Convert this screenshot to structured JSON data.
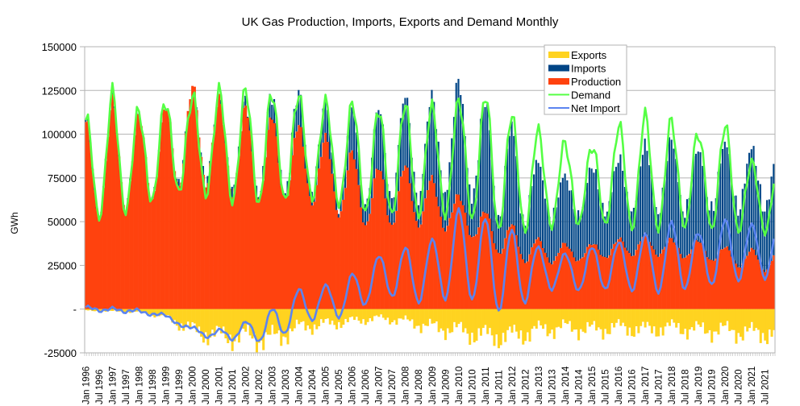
{
  "chart_data": {
    "type": "bar",
    "title": "UK Gas Production, Imports, Exports and Demand Monthly",
    "xlabel": "",
    "ylabel": "GWh",
    "ylim": [
      -25000,
      150000
    ],
    "yticks": [
      {
        "value": 150000,
        "label": "150000"
      },
      {
        "value": 125000,
        "label": "125000"
      },
      {
        "value": 100000,
        "label": "100000"
      },
      {
        "value": 75000,
        "label": "75000"
      },
      {
        "value": 50000,
        "label": "50000"
      },
      {
        "value": 25000,
        "label": "25000"
      },
      {
        "value": 0,
        "label": "-"
      },
      {
        "value": -25000,
        "label": "-25000"
      }
    ],
    "grid": true,
    "legend_position": "top-right",
    "x_start": "Jan 1996",
    "x_end": "Nov 2021",
    "x_tick_labels": [
      "Jan 1996",
      "Jul 1996",
      "Jan 1997",
      "Jul 1997",
      "Jan 1998",
      "Jul 1998",
      "Jan 1999",
      "Jul 1999",
      "Jan 2000",
      "Jul 2000",
      "Jan 2001",
      "Jul 2001",
      "Jan 2002",
      "Jul 2002",
      "Jan 2003",
      "Jul 2003",
      "Jan 2004",
      "Jul 2004",
      "Jan 2005",
      "Jul 2005",
      "Jan 2006",
      "Jul 2006",
      "Jan 2007",
      "Jul 2007",
      "Jan 2008",
      "Jul 2008",
      "Jan 2009",
      "Jul 2009",
      "Jan 2010",
      "Jul 2010",
      "Jan 2011",
      "Jul 2011",
      "Jan 2012",
      "Jul 2012",
      "Jan 2013",
      "Jul 2013",
      "Jan 2014",
      "Jul 2014",
      "Jan 2015",
      "Jul 2015",
      "Jan 2016",
      "Jul 2016",
      "Jan 2017",
      "Jul 2017",
      "Jan 2018",
      "Jul 2018",
      "Jan 2019",
      "Jul 2019",
      "Jan 2020",
      "Jul 2020",
      "Jan 2021",
      "Jul 2021"
    ],
    "series": [
      {
        "name": "Exports",
        "kind": "bar-negative",
        "color": "#ffd320"
      },
      {
        "name": "Imports",
        "kind": "bar-stacked",
        "color": "#004586"
      },
      {
        "name": "Production",
        "kind": "bar-stacked",
        "color": "#ff420e"
      },
      {
        "name": "Demand",
        "kind": "line",
        "color": "#55ff44"
      },
      {
        "name": "Net Import",
        "kind": "line",
        "color": "#5b84f0"
      }
    ],
    "annual_winter_peak_demand": [
      108000,
      121000,
      111000,
      121000,
      125000,
      124000,
      122000,
      122000,
      125000,
      121000,
      117000,
      111000,
      116000,
      118000,
      122000,
      122000,
      108000,
      101000,
      97000,
      95000,
      104000,
      108000,
      107000,
      103000,
      108000,
      82000
    ],
    "annual_summer_trough_demand": [
      51000,
      55000,
      59000,
      64000,
      65000,
      63000,
      62000,
      61000,
      62000,
      60000,
      58000,
      55000,
      55000,
      50000,
      53000,
      48000,
      44000,
      47000,
      46000,
      47000,
      48000,
      46000,
      47000,
      44000,
      43000,
      45000
    ],
    "annual_winter_production": [
      107000,
      118000,
      110000,
      118000,
      130000,
      120000,
      114000,
      110000,
      107000,
      100000,
      90000,
      80000,
      82000,
      76000,
      66000,
      56000,
      48000,
      40000,
      38000,
      38000,
      40000,
      42000,
      40000,
      40000,
      36000,
      34000
    ],
    "annual_summer_production": [
      50000,
      56000,
      60000,
      64000,
      72000,
      68000,
      64000,
      62000,
      62000,
      56000,
      50000,
      46000,
      50000,
      44000,
      45000,
      36000,
      28000,
      26000,
      26000,
      28000,
      30000,
      32000,
      30000,
      28000,
      26000,
      22000
    ],
    "annual_winter_net_import": [
      1000,
      0,
      -1000,
      -3000,
      -10000,
      -12000,
      -8000,
      0,
      12000,
      14000,
      20000,
      30000,
      35000,
      40000,
      58000,
      52000,
      45000,
      35000,
      32000,
      36000,
      38000,
      42000,
      50000,
      44000,
      52000,
      48000
    ],
    "annual_summer_net_import": [
      -500,
      -800,
      -1500,
      -5000,
      -14000,
      -18000,
      -16000,
      -20000,
      -8000,
      -6000,
      -4000,
      10000,
      5000,
      2000,
      8000,
      2000,
      -4000,
      12000,
      10000,
      10000,
      12000,
      10000,
      10000,
      12000,
      14000,
      18000
    ],
    "annual_summer_exports": [
      1000,
      1500,
      2000,
      5000,
      14000,
      18000,
      18000,
      20000,
      12000,
      10000,
      8000,
      6000,
      8000,
      12000,
      14000,
      18000,
      18000,
      14000,
      12000,
      14000,
      12000,
      14000,
      12000,
      14000,
      14000,
      16000
    ]
  }
}
